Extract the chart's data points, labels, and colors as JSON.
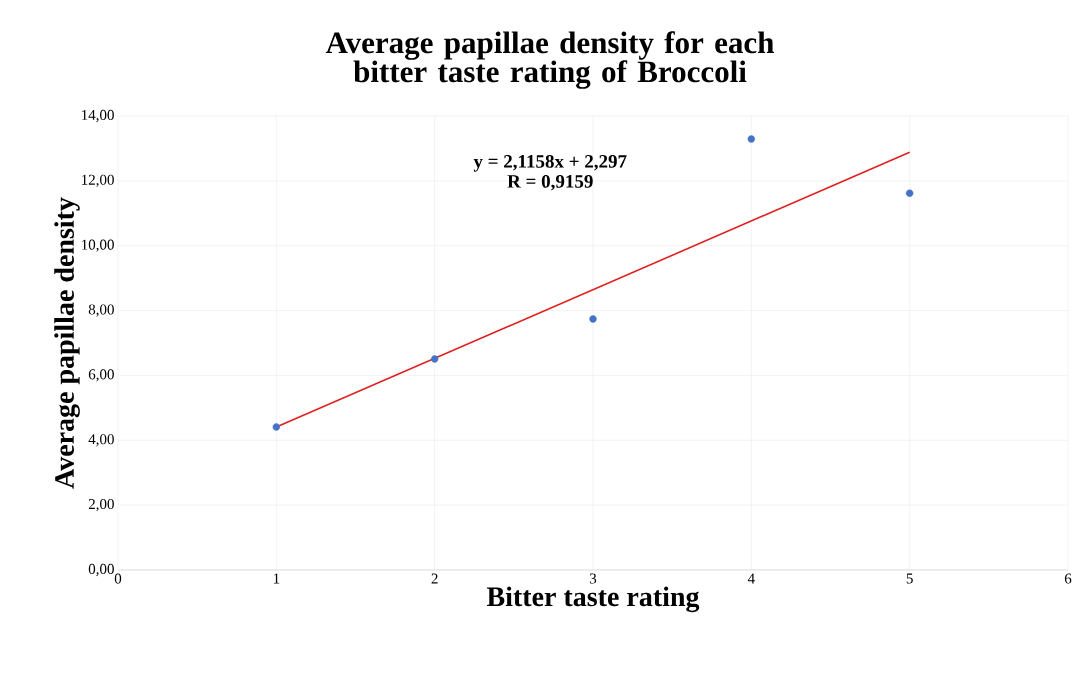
{
  "chart_data": {
    "type": "scatter",
    "title": "Average papillae density for each bitter taste rating of Broccoli",
    "xlabel": "Bitter taste rating",
    "ylabel": "Average papillae density",
    "annotations": [
      "y = 2,1158x + 2,297",
      "R = 0,9159"
    ],
    "series": [
      {
        "color": "#4472c4",
        "x": [
          1,
          2,
          3,
          4,
          5
        ],
        "values": [
          4.41,
          6.51,
          7.74,
          13.29,
          11.62
        ],
        "marker": "circle"
      },
      {
        "type": "line",
        "color": "#e02020",
        "x": [
          1,
          5
        ],
        "values": [
          4.41,
          12.88
        ],
        "marker": "none",
        "line_style": "solid"
      }
    ],
    "xlim": [
      0,
      6
    ],
    "xticks": [
      0,
      1,
      2,
      3,
      4,
      5,
      6
    ],
    "ylim": [
      0,
      14
    ],
    "yticks": [
      {
        "value": 0,
        "label": "0,00"
      },
      {
        "value": 2,
        "label": "2,00"
      },
      {
        "value": 4,
        "label": "4,00"
      },
      {
        "value": 6,
        "label": "6,00"
      },
      {
        "value": 8,
        "label": "8,00"
      },
      {
        "value": 10,
        "label": "10,00"
      },
      {
        "value": 12,
        "label": "12,00"
      },
      {
        "value": 14,
        "label": "14,00"
      }
    ],
    "grid": true
  }
}
